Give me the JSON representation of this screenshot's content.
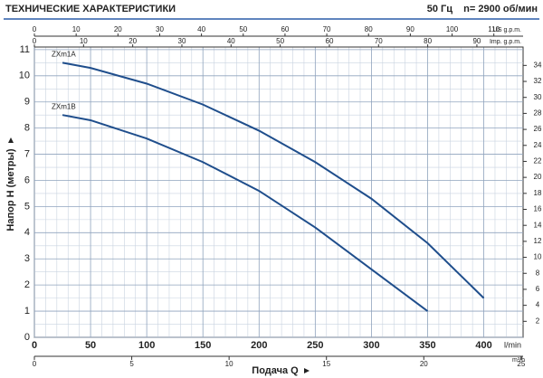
{
  "header": {
    "title": "ТЕХНИЧЕСКИЕ ХАРАКТЕРИСТИКИ",
    "frequency": "50 Гц",
    "speed": "n= 2900 об/мин"
  },
  "chart_data": {
    "type": "line",
    "ylabel": "Напор H (метры)",
    "xlabel": "Подача Q",
    "xunit": "l/min",
    "xlim": [
      0,
      435
    ],
    "xticks": [
      0,
      50,
      100,
      150,
      200,
      250,
      300,
      350,
      400
    ],
    "xminorticks": [
      10,
      20,
      30,
      40,
      60,
      70,
      80,
      90,
      110,
      120,
      130,
      140,
      160,
      170,
      180,
      190,
      210,
      220,
      230,
      240,
      260,
      270,
      280,
      290,
      310,
      320,
      330,
      340,
      360,
      370,
      380,
      390,
      410,
      420,
      430
    ],
    "ylim": [
      0,
      11.1
    ],
    "yticks": [
      0,
      1,
      2,
      3,
      4,
      5,
      6,
      7,
      8,
      9,
      10,
      11
    ],
    "yminorticks": [
      0.5,
      1.5,
      2.5,
      3.5,
      4.5,
      5.5,
      6.5,
      7.5,
      8.5,
      9.5,
      10.5
    ],
    "y2lim": [
      0,
      36.3
    ],
    "y2ticks": [
      2,
      4,
      6,
      8,
      10,
      12,
      14,
      16,
      18,
      20,
      22,
      24,
      26,
      28,
      30,
      32,
      34
    ],
    "top_axes": [
      {
        "label": "US g.p.m.",
        "lim": [
          0,
          117
        ],
        "ticks": [
          0,
          10,
          20,
          30,
          40,
          50,
          60,
          70,
          80,
          90,
          100,
          110
        ]
      },
      {
        "label": "Imp. g.p.m.",
        "lim": [
          0,
          99.4
        ],
        "ticks": [
          0,
          10,
          20,
          30,
          40,
          50,
          60,
          70,
          80,
          90
        ]
      }
    ],
    "bottom_axis2": {
      "label": "m³/h",
      "lim": [
        0,
        25.1
      ],
      "ticks": [
        0,
        5,
        10,
        15,
        20,
        25
      ]
    },
    "grid": true,
    "series": [
      {
        "name": "ZXm1A",
        "color": "#1f4e8c",
        "x": [
          25,
          50,
          100,
          150,
          200,
          250,
          300,
          350,
          400
        ],
        "values": [
          10.5,
          10.3,
          9.7,
          8.9,
          7.9,
          6.7,
          5.3,
          3.6,
          1.5
        ]
      },
      {
        "name": "ZXm1B",
        "color": "#1f4e8c",
        "x": [
          25,
          50,
          100,
          150,
          200,
          250,
          300,
          350
        ],
        "values": [
          8.5,
          8.3,
          7.6,
          6.7,
          5.6,
          4.2,
          2.6,
          1.0
        ]
      }
    ]
  }
}
